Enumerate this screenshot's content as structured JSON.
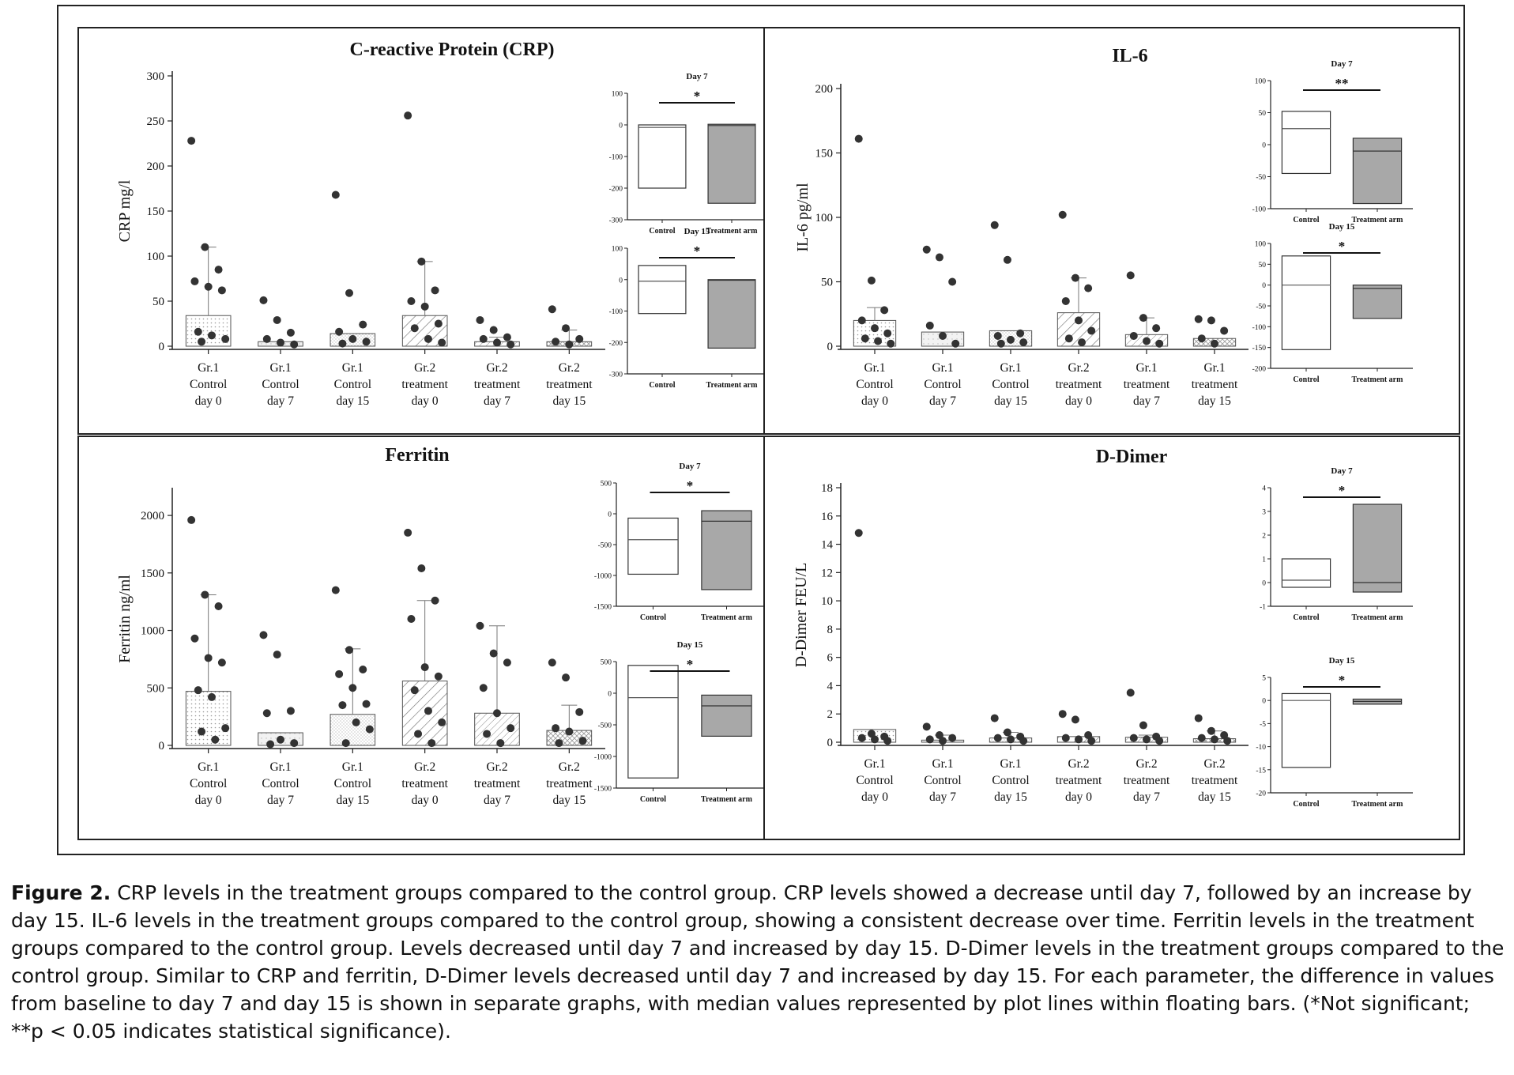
{
  "caption": {
    "label": "Figure 2.",
    "text": "CRP levels in the treatment groups compared to the control group. CRP levels showed a decrease until day 7, followed by an increase by day 15. IL-6 levels in the treatment groups compared to the control group, showing a consistent decrease over time. Ferritin levels in the treatment groups compared to the control group. Levels decreased until day 7 and increased by day 15. D-Dimer levels in the treatment groups compared to the control group. Similar to CRP and ferritin, D-Dimer levels decreased until day 7 and increased by day 15. For each parameter, the difference in values from baseline to day 7 and day 15 is shown in separate graphs, with median values represented by plot lines within floating bars. (*Not significant; **p < 0.05 indicates statistical significance)."
  },
  "chart_data": [
    {
      "id": "crp",
      "type": "bar",
      "title": "C-reactive Protein (CRP)",
      "ylabel": "CRP mg/l",
      "ylim": [
        0,
        300
      ],
      "yticks": [
        0,
        50,
        100,
        150,
        200,
        250,
        300
      ],
      "categories": [
        "Gr.1 Control day 0",
        "Gr.1 Control day 7",
        "Gr.1 Control day 15",
        "Gr.2 treatment day 0",
        "Gr.2 treatment day 7",
        "Gr.2 treatment day 15"
      ],
      "category_lines": [
        [
          "Gr.1",
          "Control",
          "day 0"
        ],
        [
          "Gr.1",
          "Control",
          "day 7"
        ],
        [
          "Gr.1",
          "Control",
          "day 15"
        ],
        [
          "Gr.2",
          "treatment",
          "day 0"
        ],
        [
          "Gr.2",
          "treatment",
          "day 7"
        ],
        [
          "Gr.2",
          "treatment",
          "day 15"
        ]
      ],
      "values": [
        34,
        5,
        14,
        34,
        5,
        5
      ],
      "error_upper": [
        110,
        0,
        0,
        94,
        10,
        18
      ],
      "points": [
        [
          228,
          110,
          85,
          72,
          66,
          62,
          16,
          12,
          8,
          5
        ],
        [
          51,
          29,
          15,
          8,
          4,
          2
        ],
        [
          168,
          59,
          24,
          16,
          8,
          5,
          3
        ],
        [
          256,
          94,
          62,
          50,
          44,
          25,
          20,
          8,
          4
        ],
        [
          29,
          18,
          10,
          8,
          4,
          2
        ],
        [
          41,
          20,
          8,
          5,
          2
        ]
      ],
      "insets": [
        {
          "title": "Day 7",
          "ylim": [
            -300,
            100
          ],
          "yticks": [
            -300,
            -200,
            -100,
            0,
            100
          ],
          "categories": [
            "Control",
            "Treatment arm"
          ],
          "bars": [
            {
              "low": -200,
              "high": 0,
              "median": -8
            },
            {
              "low": -248,
              "high": 2,
              "median": -2
            }
          ],
          "significance": "*"
        },
        {
          "title": "Day 15",
          "ylim": [
            -300,
            100
          ],
          "yticks": [
            -300,
            -200,
            -100,
            0,
            100
          ],
          "categories": [
            "Control",
            "Treatment arm"
          ],
          "bars": [
            {
              "low": -108,
              "high": 45,
              "median": -5
            },
            {
              "low": -218,
              "high": 0,
              "median": -2
            }
          ],
          "significance": "*"
        }
      ]
    },
    {
      "id": "il6",
      "type": "bar",
      "title": "IL-6",
      "ylabel": "IL-6 pg/ml",
      "ylim": [
        0,
        200
      ],
      "yticks": [
        0,
        50,
        100,
        150,
        200
      ],
      "categories": [
        "Gr.1 Control day 0",
        "Gr.1 Control day 7",
        "Gr.1 Control day 15",
        "Gr.2 treatment day 0",
        "Gr.1 treatment day 7",
        "Gr.1 treatment day 15"
      ],
      "category_lines": [
        [
          "Gr.1",
          "Control",
          "day 0"
        ],
        [
          "Gr.1",
          "Control",
          "day 7"
        ],
        [
          "Gr.1",
          "Control",
          "day 15"
        ],
        [
          "Gr.2",
          "treatment",
          "day 0"
        ],
        [
          "Gr.1",
          "treatment",
          "day 7"
        ],
        [
          "Gr.1",
          "treatment",
          "day 15"
        ]
      ],
      "values": [
        20,
        11,
        12,
        26,
        9,
        6
      ],
      "error_upper": [
        30,
        0,
        0,
        53,
        22,
        0
      ],
      "points": [
        [
          161,
          51,
          28,
          20,
          14,
          10,
          6,
          4,
          2
        ],
        [
          75,
          69,
          50,
          16,
          8,
          2
        ],
        [
          94,
          67,
          10,
          8,
          5,
          3,
          2
        ],
        [
          102,
          53,
          45,
          35,
          20,
          12,
          6,
          3
        ],
        [
          55,
          22,
          14,
          8,
          4,
          2
        ],
        [
          21,
          20,
          12,
          6,
          2
        ]
      ],
      "insets": [
        {
          "title": "Day 7",
          "ylim": [
            -100,
            100
          ],
          "yticks": [
            -100,
            -50,
            0,
            50,
            100
          ],
          "categories": [
            "Control",
            "Treatment arm"
          ],
          "bars": [
            {
              "low": -45,
              "high": 52,
              "median": 25
            },
            {
              "low": -92,
              "high": 10,
              "median": -10
            }
          ],
          "significance": "**"
        },
        {
          "title": "Day 15",
          "ylim": [
            -200,
            100
          ],
          "yticks": [
            -200,
            -150,
            -100,
            -50,
            0,
            50,
            100
          ],
          "categories": [
            "Control",
            "Treatment arm"
          ],
          "bars": [
            {
              "low": -155,
              "high": 70,
              "median": 0
            },
            {
              "low": -80,
              "high": 0,
              "median": -8
            }
          ],
          "significance": "*"
        }
      ]
    },
    {
      "id": "ferritin",
      "type": "bar",
      "title": "Ferritin",
      "ylabel": "Ferritin ng/ml",
      "ylim": [
        0,
        2200
      ],
      "yticks": [
        0,
        500,
        1000,
        1500,
        2000
      ],
      "categories": [
        "Gr.1 Control day 0",
        "Gr.1 Control day 7",
        "Gr.1 Control day 15",
        "Gr.2 treatment day 0",
        "Gr.2 treatment day 7",
        "Gr.2 treatment day 15"
      ],
      "category_lines": [
        [
          "Gr.1",
          "Control",
          "day 0"
        ],
        [
          "Gr.1",
          "Control",
          "day 7"
        ],
        [
          "Gr.1",
          "Control",
          "day 15"
        ],
        [
          "Gr.2",
          "treatment",
          "day 0"
        ],
        [
          "Gr.2",
          "treatment",
          "day 7"
        ],
        [
          "Gr.2",
          "treatment",
          "day 15"
        ]
      ],
      "values": [
        470,
        110,
        270,
        560,
        280,
        130
      ],
      "error_upper": [
        1310,
        0,
        840,
        1260,
        1040,
        350
      ],
      "points": [
        [
          1960,
          1310,
          1210,
          930,
          760,
          720,
          480,
          420,
          150,
          120,
          50
        ],
        [
          960,
          790,
          300,
          280,
          50,
          20,
          10
        ],
        [
          1350,
          830,
          660,
          620,
          500,
          360,
          350,
          200,
          140,
          20
        ],
        [
          1850,
          1540,
          1260,
          1100,
          680,
          600,
          480,
          300,
          200,
          100,
          20
        ],
        [
          1040,
          800,
          720,
          500,
          280,
          150,
          100,
          20
        ],
        [
          720,
          590,
          290,
          150,
          120,
          40,
          20
        ]
      ],
      "insets": [
        {
          "title": "Day 7",
          "ylim": [
            -1500,
            500
          ],
          "yticks": [
            -1500,
            -1000,
            -500,
            0,
            500
          ],
          "categories": [
            "Control",
            "Treatment arm"
          ],
          "bars": [
            {
              "low": -980,
              "high": -70,
              "median": -420
            },
            {
              "low": -1230,
              "high": 50,
              "median": -120
            }
          ],
          "significance": "*"
        },
        {
          "title": "Day 15",
          "ylim": [
            -1500,
            500
          ],
          "yticks": [
            -1500,
            -1000,
            -500,
            0,
            500
          ],
          "categories": [
            "Control",
            "Treatment arm"
          ],
          "bars": [
            {
              "low": -1340,
              "high": 440,
              "median": -70
            },
            {
              "low": -680,
              "high": -30,
              "median": -200
            }
          ],
          "significance": "*"
        }
      ]
    },
    {
      "id": "ddimer",
      "type": "bar",
      "title": "D-Dimer",
      "ylabel": "D-Dimer FEU/L",
      "ylim": [
        0,
        18
      ],
      "yticks": [
        0,
        2,
        4,
        6,
        8,
        10,
        12,
        14,
        16,
        18
      ],
      "categories": [
        "Gr.1 Control day 0",
        "Gr.1 Control day 7",
        "Gr.1 Control day 15",
        "Gr.2 treatment day 0",
        "Gr.2 treatment day 7",
        "Gr.2 treatment day 15"
      ],
      "category_lines": [
        [
          "Gr.1",
          "Control",
          "day 0"
        ],
        [
          "Gr.1",
          "Control",
          "day 7"
        ],
        [
          "Gr.1",
          "Control",
          "day 15"
        ],
        [
          "Gr.2",
          "treatment",
          "day 0"
        ],
        [
          "Gr.2",
          "treatment",
          "day 7"
        ],
        [
          "Gr.2",
          "treatment",
          "day 15"
        ]
      ],
      "values": [
        0.9,
        0.15,
        0.3,
        0.4,
        0.35,
        0.25
      ],
      "error_upper": [
        0,
        0.5,
        0.7,
        0.4,
        0.5,
        0.8
      ],
      "points": [
        [
          14.8,
          0.6,
          0.4,
          0.3,
          0.2,
          0.1
        ],
        [
          1.1,
          0.5,
          0.3,
          0.2,
          0.1
        ],
        [
          1.7,
          0.7,
          0.4,
          0.3,
          0.2,
          0.1
        ],
        [
          2.0,
          1.6,
          0.5,
          0.3,
          0.2,
          0.1
        ],
        [
          3.5,
          1.2,
          0.4,
          0.3,
          0.2,
          0.1
        ],
        [
          1.7,
          0.8,
          0.5,
          0.3,
          0.2,
          0.1
        ]
      ],
      "insets": [
        {
          "title": "Day 7",
          "ylim": [
            -1,
            4
          ],
          "yticks": [
            -1,
            0,
            1,
            2,
            3,
            4
          ],
          "categories": [
            "Control",
            "Treatment arm"
          ],
          "bars": [
            {
              "low": -0.2,
              "high": 1.0,
              "median": 0.1
            },
            {
              "low": -0.4,
              "high": 3.3,
              "median": 0
            }
          ],
          "significance": "*"
        },
        {
          "title": "Day 15",
          "ylim": [
            -20,
            5
          ],
          "yticks": [
            -20,
            -15,
            -10,
            -5,
            0,
            5
          ],
          "categories": [
            "Control",
            "Treatment arm"
          ],
          "bars": [
            {
              "low": -14.5,
              "high": 1.5,
              "median": 0
            },
            {
              "low": -0.8,
              "high": 0.3,
              "median": -0.2
            }
          ],
          "significance": "*"
        }
      ]
    }
  ],
  "colors": {
    "axis": "#222222",
    "point": "#333333",
    "bar_edge": "#555555",
    "treatment_fill": "#a8a8a8",
    "control_fill": "#ffffff"
  }
}
